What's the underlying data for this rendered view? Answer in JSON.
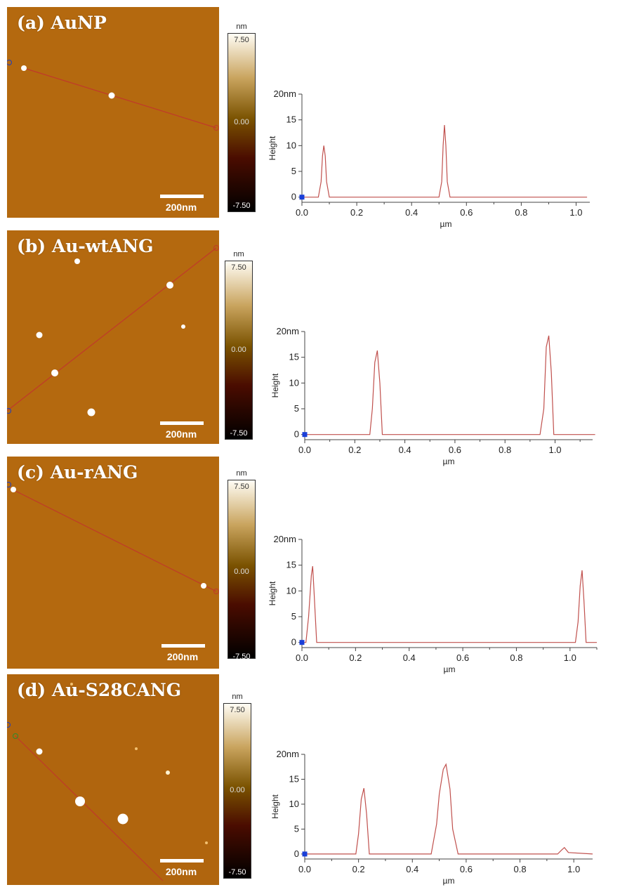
{
  "colorbar": {
    "unit": "nm",
    "max": "7.50",
    "mid": "0.00",
    "min": "-7.50"
  },
  "scale_bar": "200nm",
  "panels": [
    {
      "label": "(a) AuNP"
    },
    {
      "label": "(b) Au-wtANG"
    },
    {
      "label": "(c) Au-rANG"
    },
    {
      "label": "(d) Au-S28CANG"
    }
  ],
  "chart_data": [
    {
      "type": "line",
      "title": "",
      "xlabel": "µm",
      "ylabel": "Height",
      "xlim": [
        0.0,
        1.05
      ],
      "ylim": [
        -1,
        20
      ],
      "xticks": [
        "0.0",
        "0.2",
        "0.4",
        "0.6",
        "0.8",
        "1.0"
      ],
      "yticks": [
        "0",
        "5",
        "10",
        "15",
        "20nm"
      ],
      "series": [
        {
          "x": [
            0.0,
            0.06,
            0.07,
            0.075,
            0.08,
            0.085,
            0.09,
            0.1,
            0.5,
            0.51,
            0.515,
            0.52,
            0.525,
            0.53,
            0.54,
            1.04
          ],
          "y": [
            0,
            0,
            3,
            8,
            10,
            8,
            3,
            0,
            0,
            3,
            10,
            14,
            10,
            3,
            0,
            0
          ]
        }
      ],
      "grid": false
    },
    {
      "type": "line",
      "title": "",
      "xlabel": "µm",
      "ylabel": "Height",
      "xlim": [
        0.0,
        1.15
      ],
      "ylim": [
        -1,
        20
      ],
      "xticks": [
        "0.0",
        "0.2",
        "0.4",
        "0.6",
        "0.8",
        "1.0"
      ],
      "yticks": [
        "0",
        "5",
        "10",
        "15",
        "20nm"
      ],
      "series": [
        {
          "x": [
            0.0,
            0.26,
            0.27,
            0.28,
            0.29,
            0.3,
            0.31,
            0.94,
            0.955,
            0.965,
            0.975,
            0.985,
            0.995,
            1.16
          ],
          "y": [
            0,
            0,
            5,
            14,
            16.3,
            10,
            0,
            0,
            5,
            17,
            19.2,
            12,
            0,
            0
          ]
        }
      ],
      "grid": false
    },
    {
      "type": "line",
      "title": "",
      "xlabel": "µm",
      "ylabel": "Height",
      "xlim": [
        0.0,
        1.1
      ],
      "ylim": [
        -1,
        20
      ],
      "xticks": [
        "0.0",
        "0.2",
        "0.4",
        "0.6",
        "0.8",
        "1.0"
      ],
      "yticks": [
        "0",
        "5",
        "10",
        "15",
        "20nm"
      ],
      "series": [
        {
          "x": [
            0.0,
            0.015,
            0.025,
            0.035,
            0.04,
            0.045,
            0.055,
            1.02,
            1.03,
            1.038,
            1.045,
            1.052,
            1.06,
            1.1
          ],
          "y": [
            0,
            0,
            5,
            13,
            14.8,
            10,
            0,
            0,
            4,
            11,
            14,
            8,
            0,
            0
          ]
        }
      ],
      "grid": false
    },
    {
      "type": "line",
      "title": "",
      "xlabel": "µm",
      "ylabel": "Height",
      "xlim": [
        0.0,
        1.07
      ],
      "ylim": [
        -1,
        20
      ],
      "xticks": [
        "0.0",
        "0.2",
        "0.4",
        "0.6",
        "0.8",
        "1.0"
      ],
      "yticks": [
        "0",
        "5",
        "10",
        "15",
        "20nm"
      ],
      "series": [
        {
          "x": [
            0.0,
            0.19,
            0.2,
            0.21,
            0.22,
            0.23,
            0.24,
            0.47,
            0.49,
            0.5,
            0.515,
            0.525,
            0.54,
            0.55,
            0.57,
            0.94,
            0.955,
            0.965,
            0.98,
            1.07
          ],
          "y": [
            0,
            0,
            4,
            11,
            13.2,
            8,
            0,
            0,
            6,
            12,
            17,
            18,
            13,
            5,
            0,
            0,
            0.8,
            1.3,
            0.3,
            0
          ]
        }
      ],
      "grid": false
    }
  ]
}
